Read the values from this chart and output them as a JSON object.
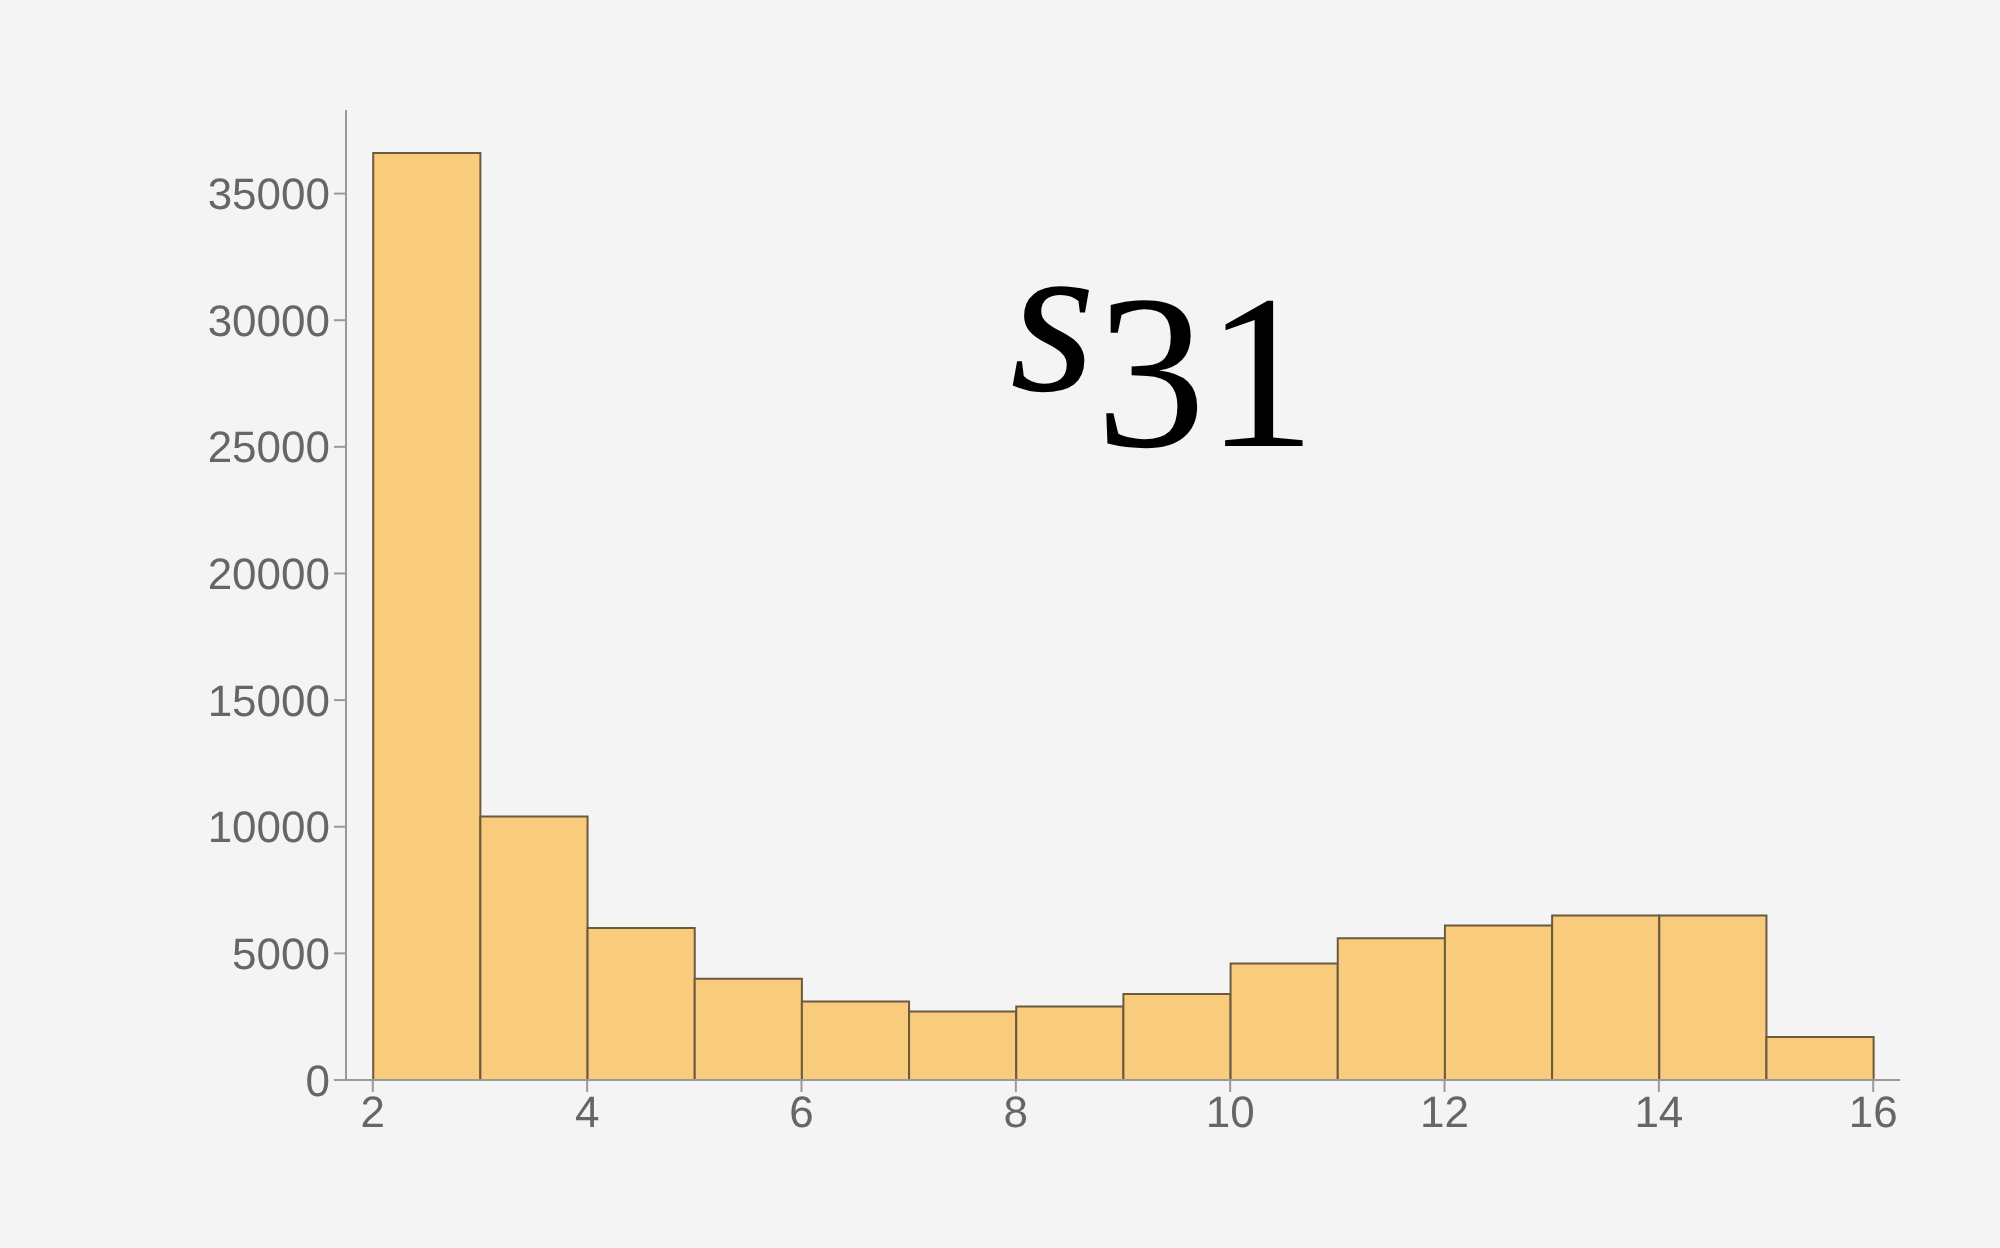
{
  "chart_data": {
    "type": "histogram",
    "bins": [
      2,
      3,
      4,
      5,
      6,
      7,
      8,
      9,
      10,
      11,
      12,
      13,
      14,
      15,
      16
    ],
    "values": [
      36600,
      10400,
      6000,
      4000,
      3100,
      2700,
      2900,
      3400,
      4600,
      5600,
      6100,
      6500,
      6500,
      1700
    ],
    "color": "#f9cb7c",
    "xlim": [
      1.75,
      16.25
    ],
    "xticks": [
      2,
      4,
      6,
      8,
      10,
      12,
      14,
      16
    ],
    "ylim": [
      0,
      38300
    ],
    "yticks": [
      0,
      5000,
      10000,
      15000,
      20000,
      25000,
      30000,
      35000
    ],
    "annotations": [
      "s$_{31}$"
    ],
    "grid": false
  }
}
